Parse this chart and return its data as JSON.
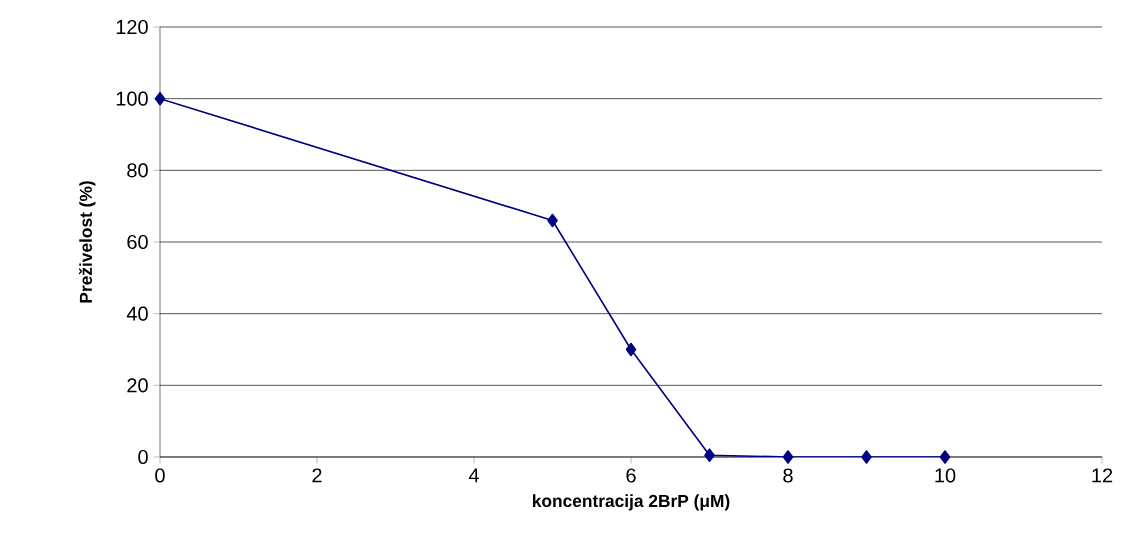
{
  "chart_data": {
    "type": "line",
    "xlabel": "koncentracija 2BrP (μM)",
    "ylabel": "Preživelost (%)",
    "x": [
      0,
      5,
      6,
      7,
      8,
      9,
      10
    ],
    "series": [
      {
        "color": "#000080",
        "values": [
          100,
          66,
          30,
          0.5,
          0,
          0,
          0
        ]
      }
    ],
    "xlim": [
      0,
      12
    ],
    "xticks": [
      0,
      2,
      4,
      6,
      8,
      10,
      12
    ],
    "ylim": [
      0,
      120
    ],
    "yticks": [
      0,
      20,
      40,
      60,
      80,
      100,
      120
    ],
    "grid": "y",
    "marker": "diamond",
    "line_style": "solid"
  }
}
